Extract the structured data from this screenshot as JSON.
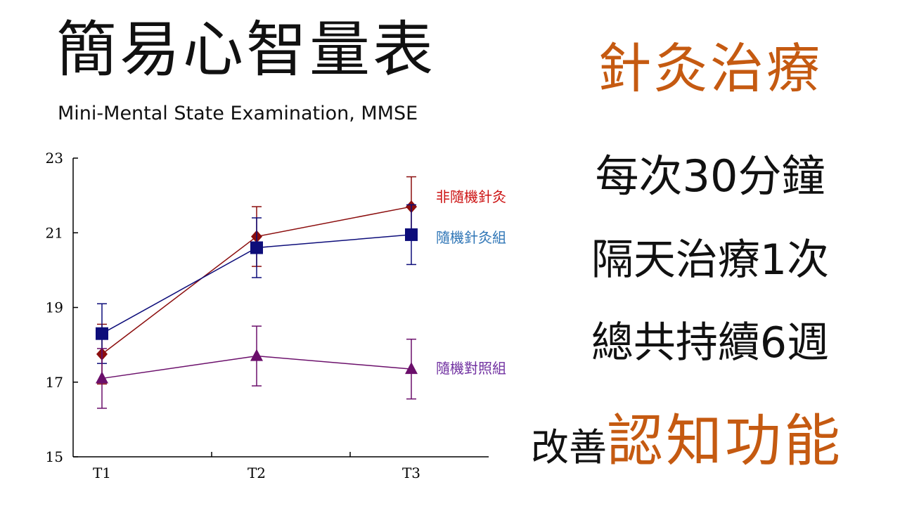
{
  "title": "簡易心智量表",
  "subtitle": "Mini-Mental State Examination, MMSE",
  "treatment": {
    "title": "針灸治療",
    "lines": [
      "每次30分鐘",
      "隔天治療1次",
      "總共持續6週"
    ]
  },
  "conclusion": {
    "prefix": "改善",
    "key": "認知功能"
  },
  "colors": {
    "accent": "#c55a11",
    "text": "#111111"
  },
  "chart_data": {
    "type": "line",
    "categories": [
      "T1",
      "T2",
      "T3"
    ],
    "ylim": [
      15,
      23
    ],
    "yticks": [
      15,
      17,
      19,
      21,
      23
    ],
    "grid": false,
    "series": [
      {
        "name": "非隨機針灸",
        "values": [
          17.75,
          20.9,
          21.7
        ],
        "errors": [
          0.8,
          0.8,
          0.8
        ],
        "color": "#8b0d0d",
        "label_color": "#cc1111",
        "marker": "diamond"
      },
      {
        "name": "隨機針灸組",
        "values": [
          18.3,
          20.6,
          20.95
        ],
        "errors": [
          0.8,
          0.8,
          0.8
        ],
        "color": "#0d0d7a",
        "label_color": "#2e75b6",
        "marker": "square"
      },
      {
        "name": "隨機對照組",
        "values": [
          17.1,
          17.7,
          17.35
        ],
        "errors": [
          0.8,
          0.8,
          0.8
        ],
        "color": "#6b0f6b",
        "label_color": "#7030a0",
        "marker": "triangle"
      }
    ]
  }
}
